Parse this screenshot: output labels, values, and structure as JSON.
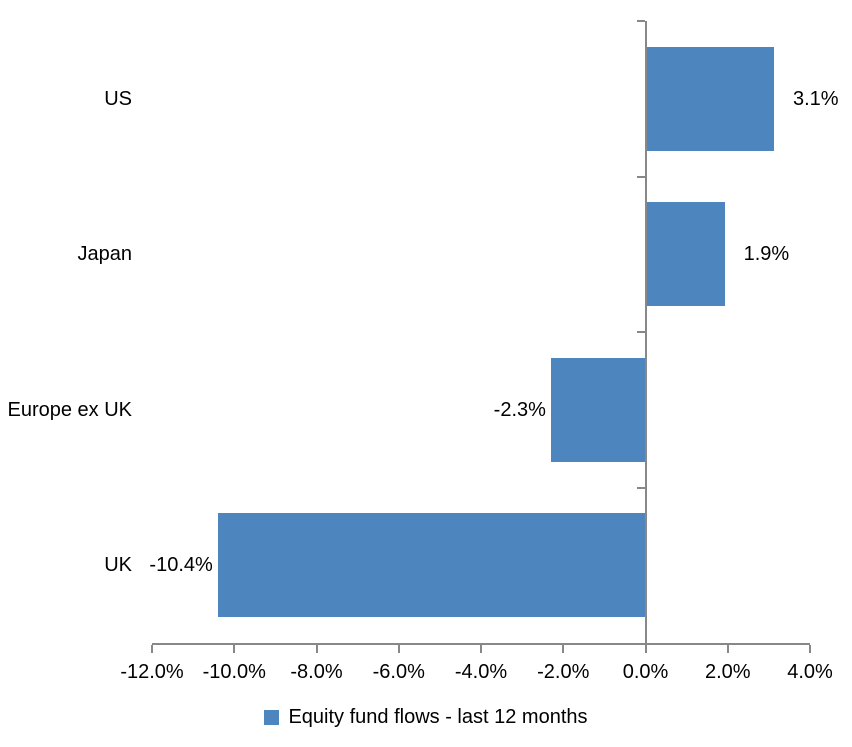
{
  "chart_data": {
    "type": "bar",
    "orientation": "horizontal",
    "title": "",
    "categories": [
      "US",
      "Japan",
      "Europe ex UK",
      "UK"
    ],
    "values": [
      3.1,
      1.9,
      -2.3,
      -10.4
    ],
    "value_labels": [
      "3.1%",
      "1.9%",
      "-2.3%",
      "-10.4%"
    ],
    "series_name": "Equity fund flows - last 12 months",
    "xlim": [
      -12,
      4
    ],
    "x_ticks": [
      -12,
      -10,
      -8,
      -6,
      -4,
      -2,
      0,
      2,
      4
    ],
    "x_tick_labels": [
      "-12.0%",
      "-10.0%",
      "-8.0%",
      "-6.0%",
      "-4.0%",
      "-2.0%",
      "0.0%",
      "2.0%",
      "4.0%"
    ],
    "grid": false,
    "legend_position": "bottom",
    "colors": {
      "bar": "#4d86be",
      "axis": "#888888",
      "text": "#000000",
      "background": "#ffffff"
    }
  }
}
